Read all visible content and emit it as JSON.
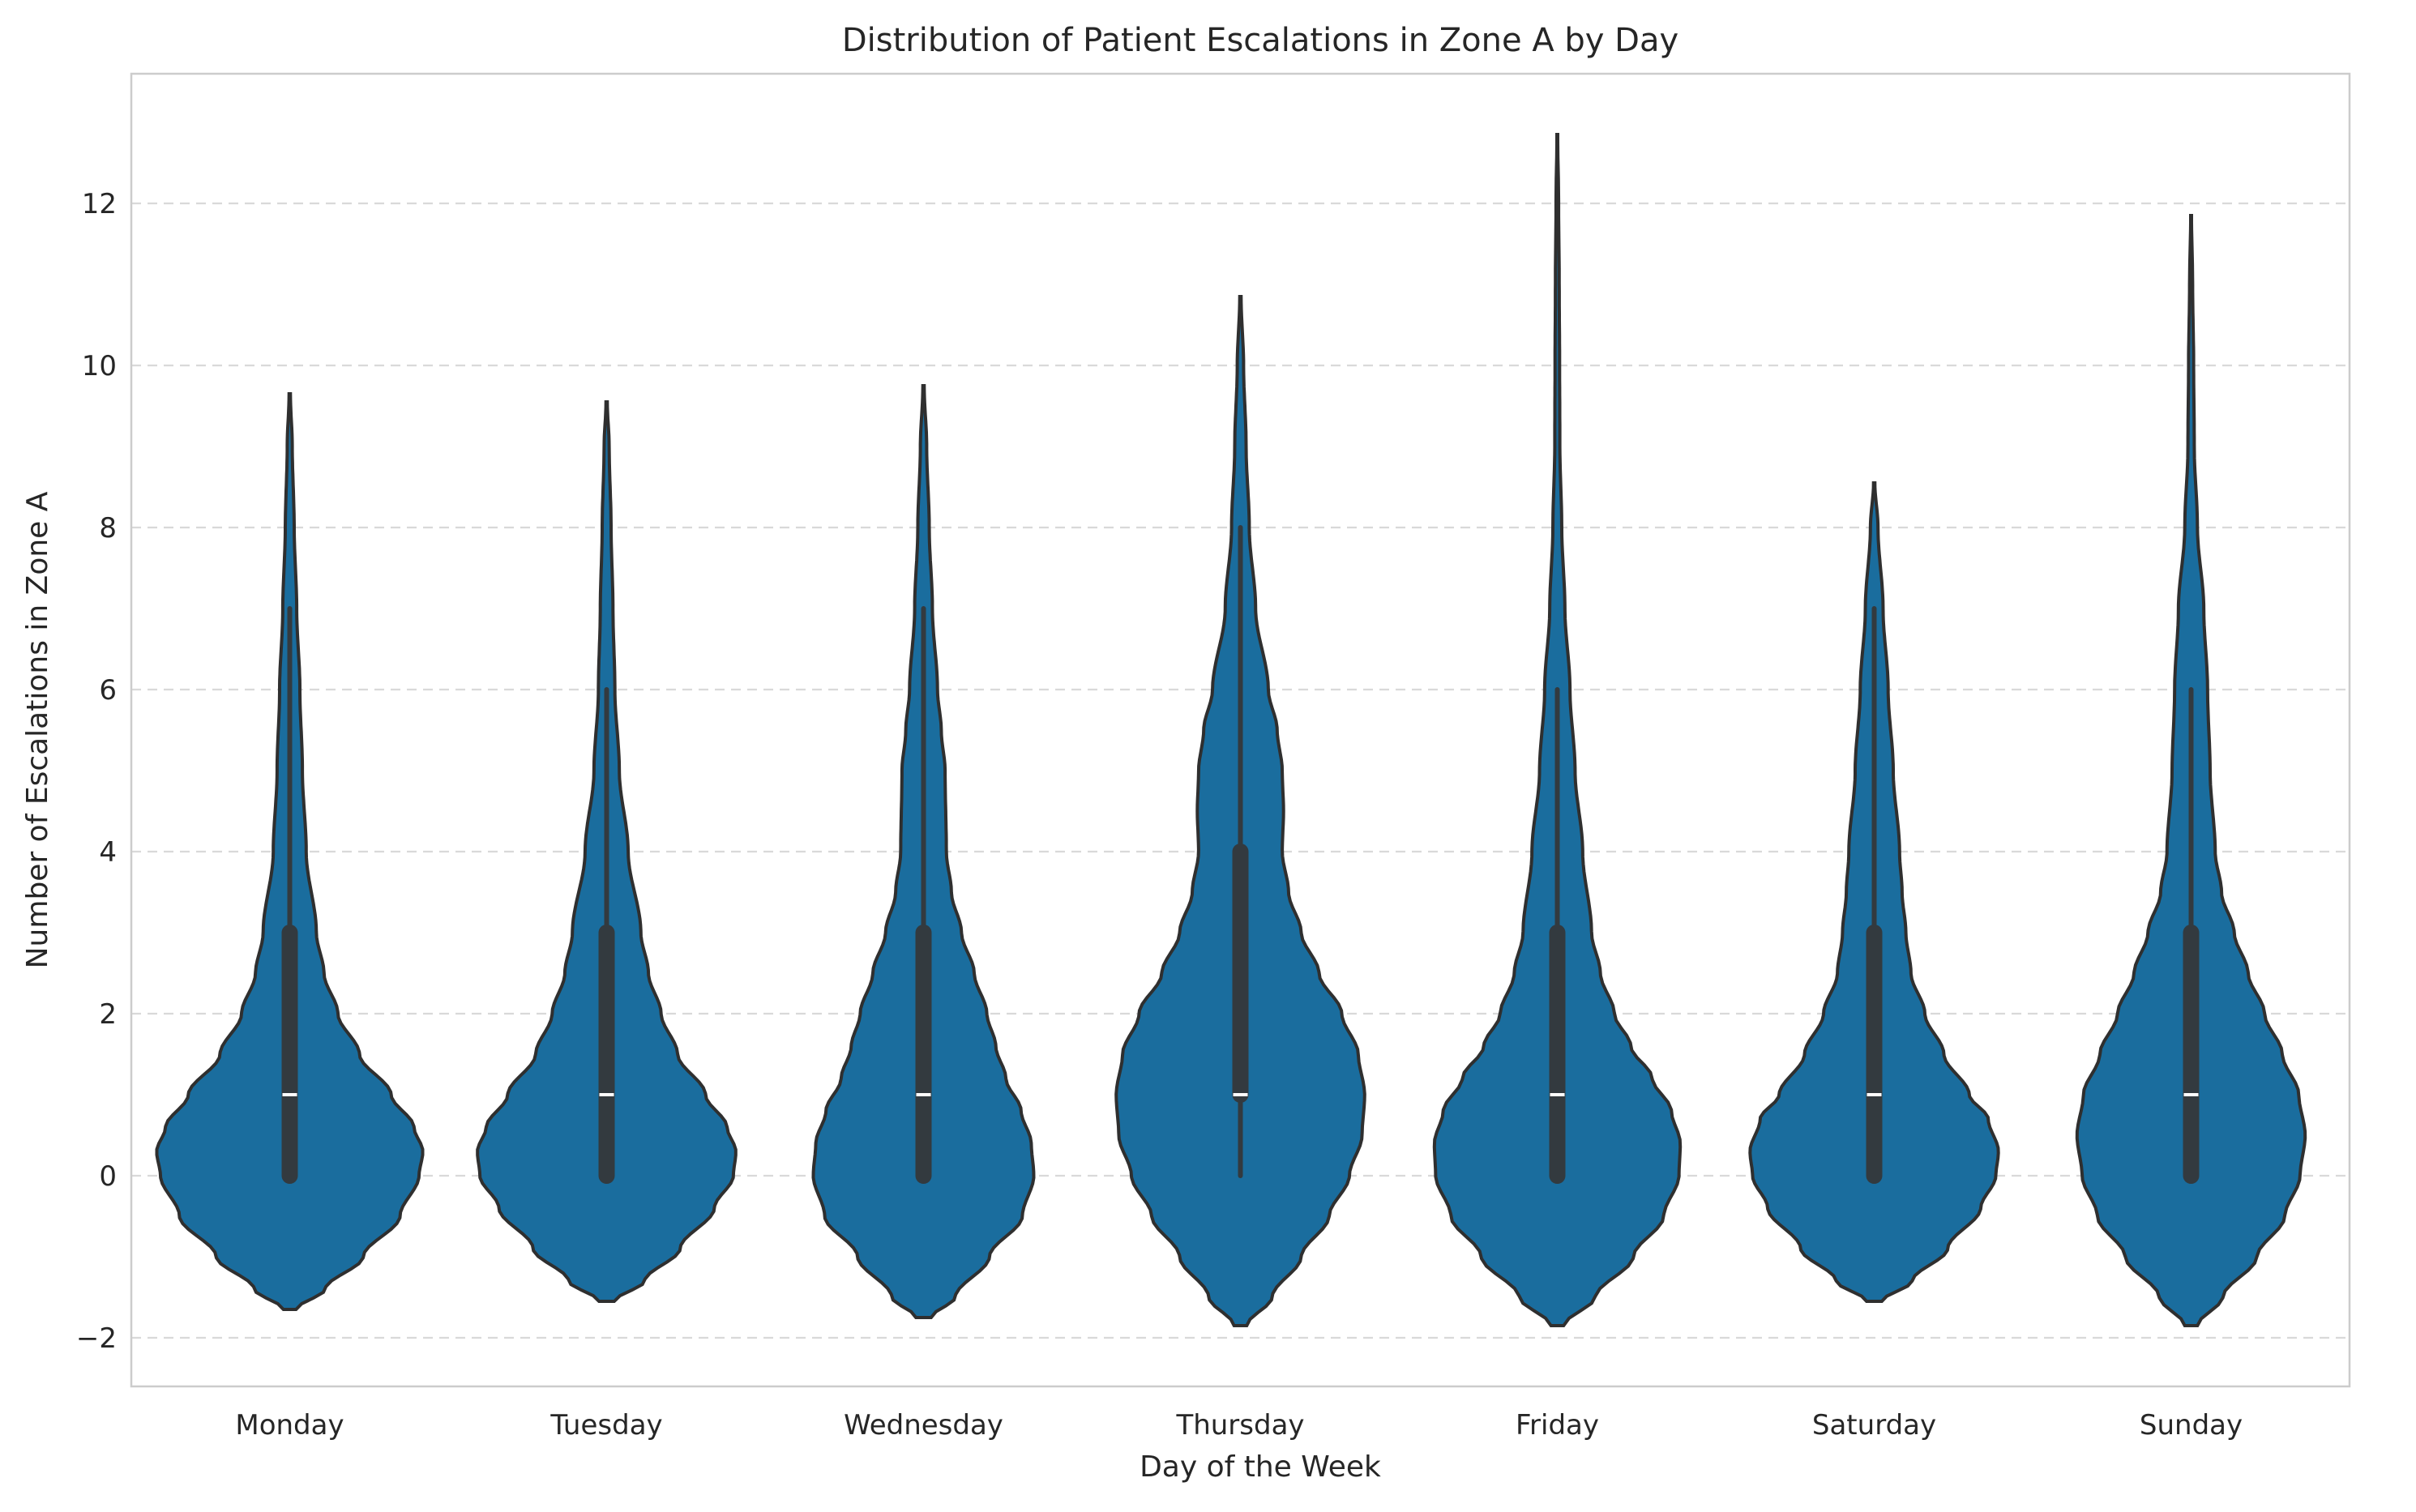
{
  "chart_data": {
    "type": "violin",
    "title": "Distribution of Patient Escalations in Zone A by Day",
    "xlabel": "Day of the Week",
    "ylabel": "Number of Escalations in Zone A",
    "ylim": [
      -2.6,
      13.6
    ],
    "yticks": [
      -2,
      0,
      2,
      4,
      6,
      8,
      10,
      12
    ],
    "ytick_labels": [
      "−2",
      "0",
      "2",
      "4",
      "6",
      "8",
      "10",
      "12"
    ],
    "grid": "horizontal dashed",
    "color": "#1a6d9e",
    "categories": [
      "Monday",
      "Tuesday",
      "Wednesday",
      "Thursday",
      "Friday",
      "Saturday",
      "Sunday"
    ],
    "violins": [
      {
        "day": "Monday",
        "min": 0,
        "q1": 0,
        "median": 1,
        "q3": 3,
        "max": 7,
        "kde_range": [
          -1.65,
          9.65
        ],
        "profile": [
          [
            -1.65,
            0.05
          ],
          [
            -1.4,
            0.28
          ],
          [
            -1.0,
            0.58
          ],
          [
            -0.5,
            0.87
          ],
          [
            0.0,
            1.02
          ],
          [
            0.3,
            1.05
          ],
          [
            0.6,
            0.98
          ],
          [
            1.0,
            0.8
          ],
          [
            1.5,
            0.55
          ],
          [
            2.0,
            0.38
          ],
          [
            2.5,
            0.27
          ],
          [
            3.0,
            0.21
          ],
          [
            4.0,
            0.13
          ],
          [
            5.0,
            0.1
          ],
          [
            6.0,
            0.08
          ],
          [
            7.0,
            0.055
          ],
          [
            8.0,
            0.035
          ],
          [
            9.0,
            0.02
          ],
          [
            9.65,
            0.005
          ]
        ]
      },
      {
        "day": "Tuesday",
        "min": 0,
        "q1": 0,
        "median": 1,
        "q3": 3,
        "max": 6,
        "kde_range": [
          -1.55,
          9.55
        ],
        "profile": [
          [
            -1.55,
            0.06
          ],
          [
            -1.3,
            0.3
          ],
          [
            -0.9,
            0.58
          ],
          [
            -0.4,
            0.85
          ],
          [
            0.0,
            1.0
          ],
          [
            0.3,
            1.02
          ],
          [
            0.6,
            0.95
          ],
          [
            1.0,
            0.78
          ],
          [
            1.5,
            0.56
          ],
          [
            2.0,
            0.43
          ],
          [
            2.5,
            0.33
          ],
          [
            3.0,
            0.27
          ],
          [
            4.0,
            0.17
          ],
          [
            5.0,
            0.1
          ],
          [
            6.0,
            0.065
          ],
          [
            7.0,
            0.05
          ],
          [
            8.0,
            0.035
          ],
          [
            9.0,
            0.02
          ],
          [
            9.55,
            0.005
          ]
        ]
      },
      {
        "day": "Wednesday",
        "min": 0,
        "q1": 0,
        "median": 1,
        "q3": 3,
        "max": 7,
        "kde_range": [
          -1.75,
          9.75
        ],
        "profile": [
          [
            -1.75,
            0.06
          ],
          [
            -1.5,
            0.25
          ],
          [
            -1.0,
            0.52
          ],
          [
            -0.5,
            0.78
          ],
          [
            0.0,
            0.87
          ],
          [
            0.4,
            0.85
          ],
          [
            0.8,
            0.77
          ],
          [
            1.2,
            0.65
          ],
          [
            1.6,
            0.57
          ],
          [
            2.0,
            0.5
          ],
          [
            2.5,
            0.4
          ],
          [
            3.0,
            0.3
          ],
          [
            3.5,
            0.22
          ],
          [
            4.0,
            0.18
          ],
          [
            5.0,
            0.17
          ],
          [
            5.5,
            0.14
          ],
          [
            6.0,
            0.11
          ],
          [
            7.0,
            0.07
          ],
          [
            8.0,
            0.045
          ],
          [
            9.0,
            0.025
          ],
          [
            9.75,
            0.005
          ]
        ]
      },
      {
        "day": "Thursday",
        "min": 0,
        "q1": 1,
        "median": 1,
        "q3": 4,
        "max": 8,
        "kde_range": [
          -1.85,
          10.85
        ],
        "profile": [
          [
            -1.85,
            0.05
          ],
          [
            -1.5,
            0.25
          ],
          [
            -1.0,
            0.48
          ],
          [
            -0.5,
            0.7
          ],
          [
            0.0,
            0.86
          ],
          [
            0.5,
            0.96
          ],
          [
            1.0,
            0.98
          ],
          [
            1.5,
            0.93
          ],
          [
            2.0,
            0.8
          ],
          [
            2.5,
            0.62
          ],
          [
            3.0,
            0.48
          ],
          [
            3.5,
            0.38
          ],
          [
            4.0,
            0.33
          ],
          [
            4.5,
            0.34
          ],
          [
            5.0,
            0.33
          ],
          [
            5.5,
            0.29
          ],
          [
            6.0,
            0.22
          ],
          [
            7.0,
            0.12
          ],
          [
            8.0,
            0.07
          ],
          [
            9.0,
            0.045
          ],
          [
            10.0,
            0.025
          ],
          [
            10.85,
            0.005
          ]
        ]
      },
      {
        "day": "Friday",
        "min": 0,
        "q1": 0,
        "median": 1,
        "q3": 3,
        "max": 6,
        "kde_range": [
          -1.85,
          12.85
        ],
        "profile": [
          [
            -1.85,
            0.05
          ],
          [
            -1.5,
            0.3
          ],
          [
            -1.0,
            0.6
          ],
          [
            -0.5,
            0.84
          ],
          [
            0.0,
            0.96
          ],
          [
            0.4,
            0.97
          ],
          [
            0.8,
            0.9
          ],
          [
            1.2,
            0.75
          ],
          [
            1.6,
            0.58
          ],
          [
            2.0,
            0.45
          ],
          [
            2.5,
            0.34
          ],
          [
            3.0,
            0.27
          ],
          [
            4.0,
            0.2
          ],
          [
            5.0,
            0.14
          ],
          [
            6.0,
            0.1
          ],
          [
            7.0,
            0.06
          ],
          [
            8.0,
            0.035
          ],
          [
            9.0,
            0.02
          ],
          [
            10.0,
            0.018
          ],
          [
            11.0,
            0.015
          ],
          [
            12.0,
            0.01
          ],
          [
            12.85,
            0.003
          ]
        ]
      },
      {
        "day": "Saturday",
        "min": 0,
        "q1": 0,
        "median": 1,
        "q3": 3,
        "max": 7,
        "kde_range": [
          -1.55,
          8.55
        ],
        "profile": [
          [
            -1.55,
            0.06
          ],
          [
            -1.3,
            0.3
          ],
          [
            -0.9,
            0.58
          ],
          [
            -0.4,
            0.84
          ],
          [
            0.0,
            0.96
          ],
          [
            0.3,
            0.98
          ],
          [
            0.7,
            0.9
          ],
          [
            1.0,
            0.75
          ],
          [
            1.5,
            0.55
          ],
          [
            2.0,
            0.4
          ],
          [
            2.5,
            0.29
          ],
          [
            3.0,
            0.25
          ],
          [
            3.5,
            0.22
          ],
          [
            4.0,
            0.2
          ],
          [
            5.0,
            0.15
          ],
          [
            6.0,
            0.11
          ],
          [
            7.0,
            0.07
          ],
          [
            8.0,
            0.03
          ],
          [
            8.55,
            0.005
          ]
        ]
      },
      {
        "day": "Sunday",
        "min": 0,
        "q1": 0,
        "median": 1,
        "q3": 3,
        "max": 6,
        "kde_range": [
          -1.85,
          11.85
        ],
        "profile": [
          [
            -1.85,
            0.05
          ],
          [
            -1.5,
            0.25
          ],
          [
            -1.0,
            0.52
          ],
          [
            -0.5,
            0.74
          ],
          [
            0.0,
            0.86
          ],
          [
            0.5,
            0.9
          ],
          [
            1.0,
            0.85
          ],
          [
            1.5,
            0.72
          ],
          [
            2.0,
            0.58
          ],
          [
            2.5,
            0.45
          ],
          [
            3.0,
            0.34
          ],
          [
            3.5,
            0.24
          ],
          [
            4.0,
            0.19
          ],
          [
            5.0,
            0.15
          ],
          [
            6.0,
            0.13
          ],
          [
            7.0,
            0.1
          ],
          [
            8.0,
            0.05
          ],
          [
            9.0,
            0.025
          ],
          [
            10.0,
            0.02
          ],
          [
            11.0,
            0.012
          ],
          [
            11.85,
            0.003
          ]
        ]
      }
    ]
  }
}
